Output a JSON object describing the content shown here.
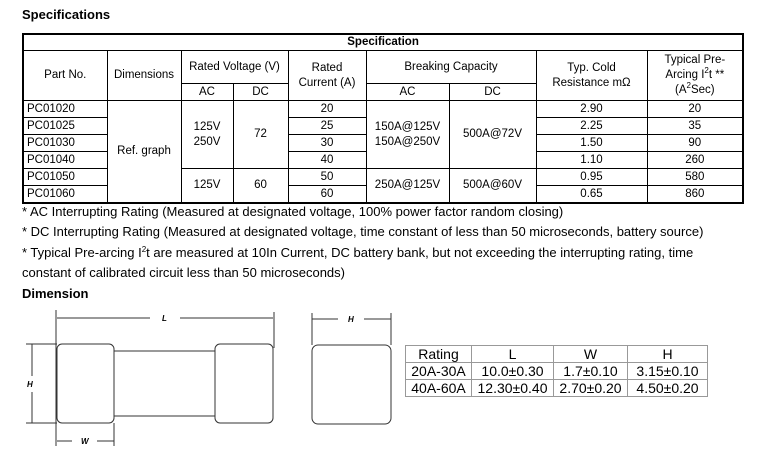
{
  "headings": {
    "specifications": "Specifications",
    "dimension": "Dimension"
  },
  "spec_table": {
    "title": "Specification",
    "headers": {
      "part_no": "Part No.",
      "dimensions": "Dimensions",
      "rated_voltage": "Rated Voltage (V)",
      "ac": "AC",
      "dc": "DC",
      "rated_current": "Rated Current (A)",
      "breaking_capacity": "Breaking Capacity",
      "cold_resistance": "Typ. Cold Resistance mΩ",
      "i2t_pre": "Typical Pre-Arcing I",
      "i2t_mid": "t **(A",
      "i2t_post": "Sec)"
    },
    "dimensions_value": "Ref. graph",
    "voltage_groups": [
      {
        "ac": "125V 250V",
        "dc": "72",
        "breaking_ac": "150A@125V 150A@250V",
        "breaking_dc": "500A@72V"
      },
      {
        "ac": "125V",
        "dc": "60",
        "breaking_ac": "250A@125V",
        "breaking_dc": "500A@60V"
      }
    ],
    "rows": [
      {
        "part": "PC01020",
        "current": "20",
        "resistance": "2.90",
        "i2t": "20"
      },
      {
        "part": "PC01025",
        "current": "25",
        "resistance": "2.25",
        "i2t": "35"
      },
      {
        "part": "PC01030",
        "current": "30",
        "resistance": "1.50",
        "i2t": "90"
      },
      {
        "part": "PC01040",
        "current": "40",
        "resistance": "1.10",
        "i2t": "260"
      },
      {
        "part": "PC01050",
        "current": "50",
        "resistance": "0.95",
        "i2t": "580"
      },
      {
        "part": "PC01060",
        "current": "60",
        "resistance": "0.65",
        "i2t": "860"
      }
    ]
  },
  "notes": {
    "ac": "* AC Interrupting Rating (Measured at designated voltage, 100% power factor random closing)",
    "dc": "* DC Interrupting Rating (Measured at designated voltage, time constant of less than 50 microseconds, battery source)",
    "i2t_a": "* Typical Pre-arcing I",
    "i2t_b": "t are measured at 10In Current, DC battery bank, but not exceeding the interrupting rating, time",
    "i2t_c": "constant of calibrated circuit less than 50 microseconds)"
  },
  "drawing_labels": {
    "L": "L",
    "H": "H",
    "W": "W"
  },
  "dim_table": {
    "headers": [
      "Rating",
      "L",
      "W",
      "H"
    ],
    "rows": [
      [
        "20A-30A",
        "10.0±0.30",
        "1.7±0.10",
        "3.15±0.10"
      ],
      [
        "40A-60A",
        "12.30±0.40",
        "2.70±0.20",
        "4.50±0.20"
      ]
    ]
  }
}
